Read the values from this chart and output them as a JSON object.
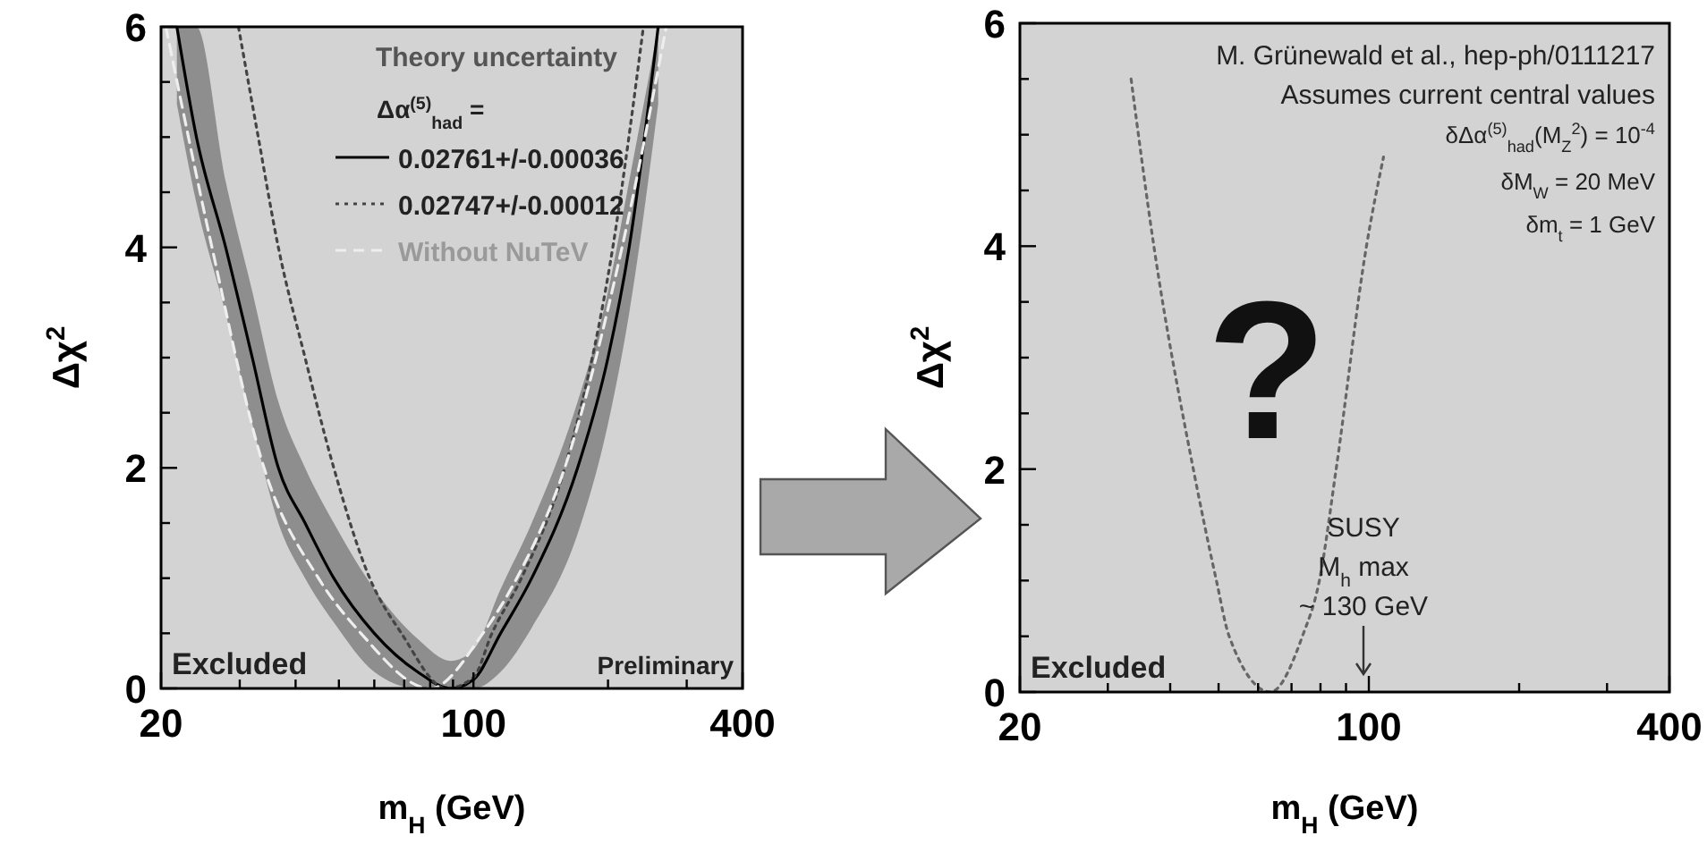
{
  "chart_data": [
    {
      "type": "line",
      "xlabel": "m$_{H}$ (GeV)",
      "ylabel": "Δχ$^{2}$",
      "log": "x",
      "xlim": [
        20,
        400
      ],
      "ylim": [
        0,
        6
      ],
      "xticks": [
        20,
        {
          "value": 30,
          "label": null
        },
        {
          "value": 40,
          "label": null
        },
        {
          "value": 50,
          "label": null
        },
        {
          "value": 60,
          "label": null
        },
        {
          "value": 70,
          "label": null
        },
        {
          "value": 80,
          "label": null
        },
        {
          "value": 90,
          "label": null
        },
        100,
        {
          "value": 200,
          "label": null
        },
        {
          "value": 300,
          "label": null
        },
        400
      ],
      "yticks": [
        0,
        {
          "value": 0.5,
          "label": null
        },
        {
          "value": 1,
          "label": null
        },
        {
          "value": 1.5,
          "label": null
        },
        2,
        {
          "value": 2.5,
          "label": null
        },
        {
          "value": 3,
          "label": null
        },
        {
          "value": 3.5,
          "label": null
        },
        4,
        {
          "value": 4.5,
          "label": null
        },
        {
          "value": 5,
          "label": null
        },
        {
          "value": 5.5,
          "label": null
        },
        6
      ],
      "legend": "top",
      "legend_title": "Δα$^{(5)}$$_{had}$ =",
      "annotations": [
        "Theory uncertainty",
        "Excluded",
        "Preliminary"
      ],
      "series": [
        {
          "name": "0.02761+/-0.00036",
          "color": "#000000",
          "line_style": "solid",
          "x": [
            21.7,
            24,
            27.9,
            32,
            36.6,
            42,
            48.7,
            60,
            75,
            89,
            100,
            115,
            135,
            171,
            200,
            223,
            259
          ],
          "values": [
            6,
            5,
            4,
            3,
            2,
            1.5,
            1,
            0.5,
            0.15,
            0,
            0.08,
            0.5,
            1,
            2,
            3,
            4,
            6
          ],
          "lower": [
            5.3,
            4.4,
            3.4,
            2.4,
            1.5,
            1,
            0.6,
            0.15,
            0,
            0,
            0,
            0.15,
            0.55,
            1.4,
            2.4,
            3.4,
            5.3
          ],
          "upper": [
            6,
            6,
            4.6,
            3.6,
            2.6,
            2,
            1.5,
            0.9,
            0.45,
            0.25,
            0.35,
            0.9,
            1.5,
            2.6,
            3.6,
            4.6,
            6
          ]
        },
        {
          "name": "0.02747+/-0.00012",
          "color": "#444444",
          "line_style": "dotted",
          "x": [
            29.8,
            33,
            36.6,
            42,
            48.7,
            58.6,
            69,
            87,
            100,
            110,
            128,
            160,
            205,
            240
          ],
          "values": [
            6,
            5,
            4,
            3,
            2,
            1,
            0.5,
            0,
            0.1,
            0.5,
            1,
            2,
            4,
            6
          ]
        },
        {
          "name": "Without NuTeV",
          "color": "#eeeeee",
          "line_style": "dashed",
          "x": [
            20.5,
            26,
            34,
            45,
            56,
            80,
            105,
            125,
            160,
            215,
            270
          ],
          "values": [
            6,
            4,
            2,
            1,
            0.5,
            0,
            0.5,
            1,
            2,
            4,
            6
          ]
        }
      ]
    },
    {
      "type": "line",
      "xlabel": "m$_{H}$ (GeV)",
      "ylabel": "Δχ$^{2}$",
      "log": "x",
      "xlim": [
        20,
        400
      ],
      "ylim": [
        0,
        6
      ],
      "xticks": [
        20,
        {
          "value": 30,
          "label": null
        },
        {
          "value": 40,
          "label": null
        },
        {
          "value": 50,
          "label": null
        },
        {
          "value": 60,
          "label": null
        },
        {
          "value": 70,
          "label": null
        },
        {
          "value": 80,
          "label": null
        },
        {
          "value": 90,
          "label": null
        },
        100,
        {
          "value": 200,
          "label": null
        },
        {
          "value": 300,
          "label": null
        },
        400
      ],
      "yticks": [
        0,
        {
          "value": 0.5,
          "label": null
        },
        {
          "value": 1,
          "label": null
        },
        {
          "value": 1.5,
          "label": null
        },
        2,
        {
          "value": 2.5,
          "label": null
        },
        {
          "value": 3,
          "label": null
        },
        {
          "value": 3.5,
          "label": null
        },
        4,
        {
          "value": 4.5,
          "label": null
        },
        {
          "value": 5,
          "label": null
        },
        {
          "value": 5.5,
          "label": null
        },
        6
      ],
      "annotations": [
        "M. Grünewald et al., hep-ph/0111217",
        "Assumes current central values",
        "δΔα$^{(5)}$$_{had}$(M$_{Z}$$^{2}$) = 10$^{-4}$",
        "δM$_{W}$ = 20 MeV",
        "δm$_{t}$ = 1 GeV",
        "SUSY\nM$_{h}$ max\n~ 130 GeV",
        "?",
        "Excluded"
      ],
      "series": [
        {
          "color": "#666666",
          "line_style": "dotted",
          "x": [
            33.4,
            37.1,
            44.5,
            49.5,
            52.5,
            63.5,
            73.6,
            79.6,
            86,
            98.9,
            107
          ],
          "values": [
            5.5,
            4,
            2,
            1,
            0.5,
            0,
            0.5,
            1,
            2,
            4,
            4.8
          ]
        }
      ]
    }
  ]
}
